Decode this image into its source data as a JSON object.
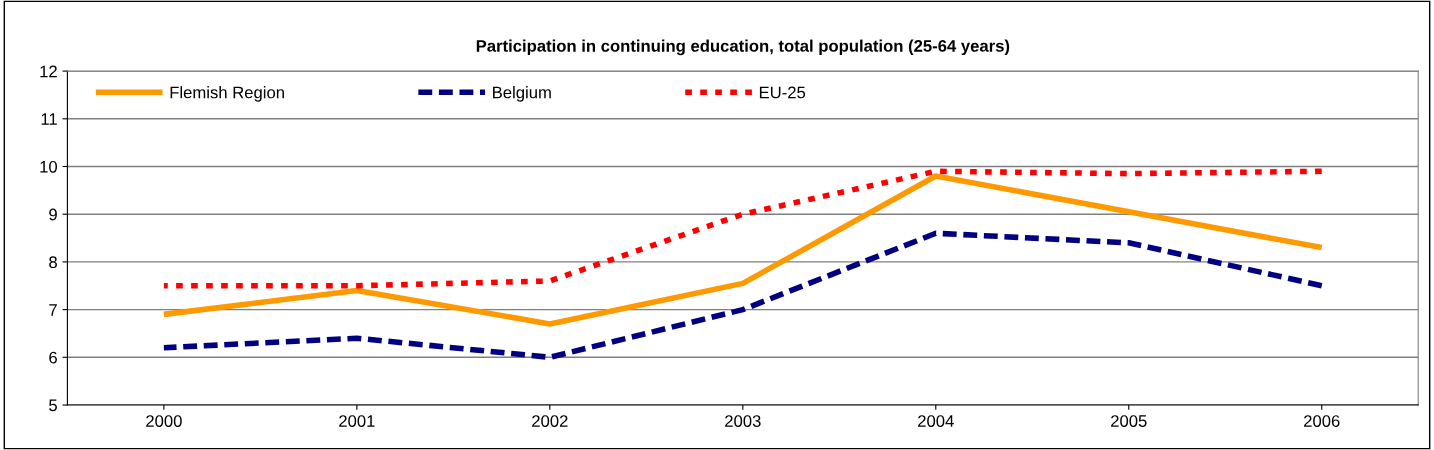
{
  "chart_data": {
    "type": "line",
    "title": "Participation in continuing education, total population (25-64 years)",
    "categories": [
      "2000",
      "2001",
      "2002",
      "2003",
      "2004",
      "2005",
      "2006"
    ],
    "series": [
      {
        "name": "Flemish Region",
        "color": "#ff9900",
        "line_style": "solid",
        "values": [
          6.9,
          7.4,
          6.7,
          7.55,
          9.8,
          9.05,
          8.3
        ]
      },
      {
        "name": "Belgium",
        "color": "#000080",
        "line_style": "dashed",
        "values": [
          6.2,
          6.4,
          6.0,
          7.0,
          8.6,
          8.4,
          7.5
        ]
      },
      {
        "name": "EU-25",
        "color": "#ff0000",
        "line_style": "dotted",
        "values": [
          7.5,
          7.5,
          7.6,
          9.0,
          9.9,
          9.85,
          9.9
        ]
      }
    ],
    "ylim": [
      5,
      12
    ],
    "yticks": [
      5,
      6,
      7,
      8,
      9,
      10,
      11,
      12
    ],
    "grid": "y",
    "legend": "top",
    "marker": "none"
  }
}
